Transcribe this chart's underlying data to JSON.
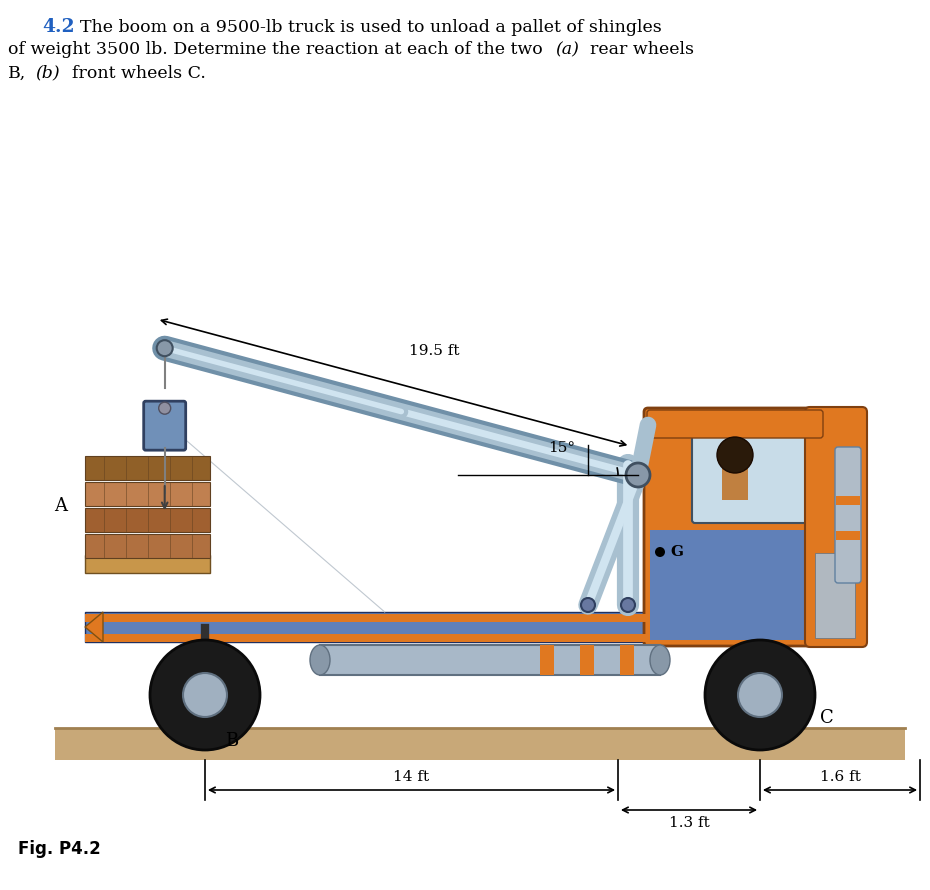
{
  "title_number": "4.2",
  "fig_label": "Fig. P4.2",
  "label_A": "A",
  "label_B": "B",
  "label_C": "C",
  "label_G": "G",
  "dim_19p5": "19.5 ft",
  "dim_15deg": "15°",
  "dim_14ft": "14 ft",
  "dim_1p3ft": "1.3 ft",
  "dim_1p6ft": "1.6 ft",
  "bg_color": "#ffffff",
  "ground_color": "#c8a878",
  "ground_top": "#a08050",
  "truck_blue": "#6080b8",
  "truck_blue2": "#4060a0",
  "truck_orange": "#e07820",
  "boom_steel": "#a8c0d0",
  "boom_highlight": "#d0e4f0",
  "boom_shadow": "#7090a8",
  "wheel_dark": "#1a1a1a",
  "wheel_hub": "#a0b0c0",
  "pallet_wood": "#c8964a",
  "pallet_dark": "#8a5a20",
  "shingle_light": "#b87840",
  "shingle_dark": "#7a4820",
  "text_color": "#000000",
  "number_color": "#2060c0",
  "dim_line_color": "#000000",
  "cable_color": "#808080"
}
